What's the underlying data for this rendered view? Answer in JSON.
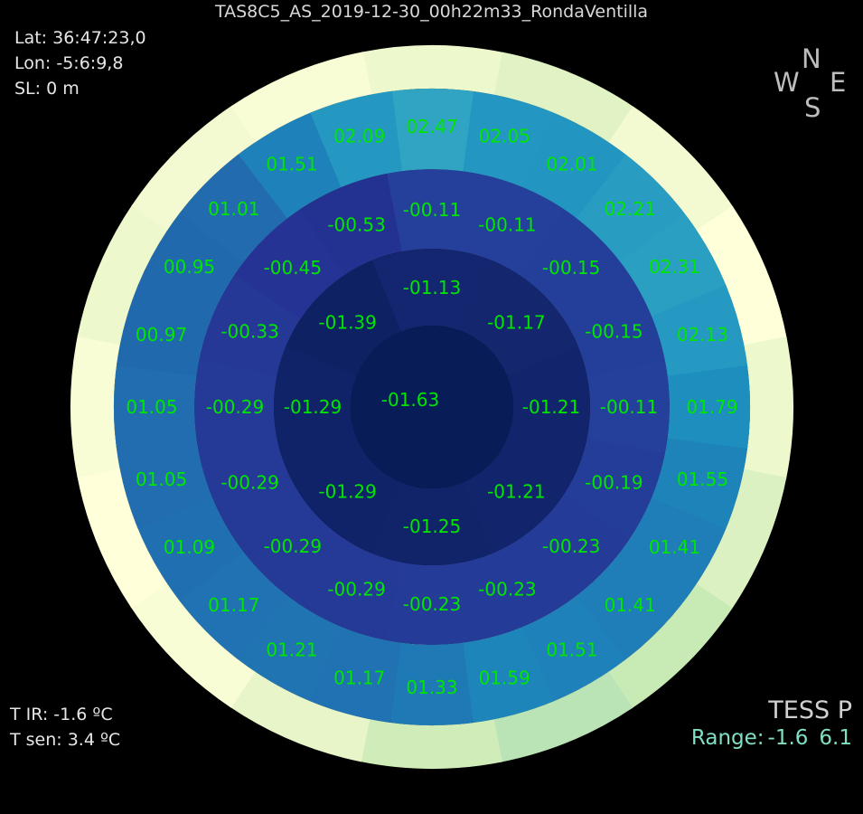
{
  "title": "TAS8C5_AS_2019-12-30_00h22m33_RondaVentilla",
  "location": {
    "lat": "Lat: 36:47:23,0",
    "lon": "Lon: -5:6:9,8",
    "sl": "SL: 0 m"
  },
  "temps": {
    "t_ir": "T IR: -1.6 ºC",
    "t_sen": "T sen: 3.4 ºC"
  },
  "compass": {
    "n": "N",
    "s": "S",
    "e": "E",
    "w": "W"
  },
  "brand": {
    "model": "TESS P",
    "range_label": "Range:",
    "range_min": "-1.6",
    "range_max": "6.1"
  },
  "colors": {
    "label": "#00e600",
    "background": "#000000"
  },
  "chart_data": {
    "type": "heatmap",
    "title": "TAS8C5_AS_2019-12-30_00h22m33_RondaVentilla",
    "projection": "polar all-sky (zenith at center, N up, E right, W left)",
    "range": [
      -1.6,
      6.1
    ],
    "colormap": "yellow-green-blue",
    "zenith": {
      "label": "-01.63",
      "value": -1.63
    },
    "rings": [
      {
        "sectors": [
          -1.13,
          -1.17,
          -1.21,
          -1.21,
          -1.25,
          -1.29,
          -1.29,
          -1.39
        ],
        "labels": [
          "-01.13",
          "-01.17",
          "-01.21",
          "-01.21",
          "-01.25",
          "-01.29",
          "-01.29",
          "-01.39"
        ]
      },
      {
        "sectors": [
          -0.11,
          -0.11,
          -0.15,
          -0.15,
          -0.11,
          -0.19,
          -0.23,
          -0.23,
          -0.23,
          -0.29,
          -0.29,
          -0.29,
          -0.29,
          -0.33,
          -0.45,
          -0.53
        ],
        "labels": [
          "-00.11",
          "-00.11",
          "-00.15",
          "-00.15",
          "-00.11",
          "-00.19",
          "-00.23",
          "-00.23",
          "-00.23",
          "-00.29",
          "-00.29",
          "-00.29",
          "-00.29",
          "-00.33",
          "-00.45",
          "-00.53"
        ]
      },
      {
        "sectors": [
          2.47,
          2.05,
          2.01,
          2.21,
          2.31,
          2.13,
          1.79,
          1.55,
          1.41,
          1.41,
          1.51,
          1.59,
          1.33,
          1.17,
          1.21,
          1.17,
          1.09,
          1.05,
          1.05,
          0.97,
          0.95,
          1.01,
          1.51,
          2.09
        ],
        "labels": [
          "02.47",
          "02.05",
          "02.01",
          "02.21",
          "02.31",
          "02.13",
          "01.79",
          "01.55",
          "01.41",
          "01.41",
          "01.51",
          "01.59",
          "01.33",
          "01.17",
          "01.21",
          "01.17",
          "01.09",
          "01.05",
          "01.05",
          "00.97",
          "00.95",
          "01.01",
          "01.51",
          "02.09"
        ]
      }
    ],
    "outer_ring_unlabeled": [
      4.5,
      4.2,
      4.0,
      3.6,
      3.2,
      2.8,
      3.0,
      3.5,
      3.9,
      4.4,
      4.8,
      5.3,
      5.8,
      6.0,
      5.6,
      5.2,
      4.9,
      4.6,
      4.2,
      3.9,
      3.7,
      3.8,
      4.1,
      4.4,
      4.6,
      5.0,
      5.3,
      5.5,
      5.7,
      5.4,
      5.0,
      4.7
    ],
    "outermost_ring_unlabeled": [
      5.8,
      5.6,
      5.9,
      6.1,
      5.8,
      5.5,
      5.2,
      5.0,
      5.3,
      5.7,
      6.0,
      6.1,
      6.0,
      5.8,
      5.9,
      6.0
    ]
  }
}
